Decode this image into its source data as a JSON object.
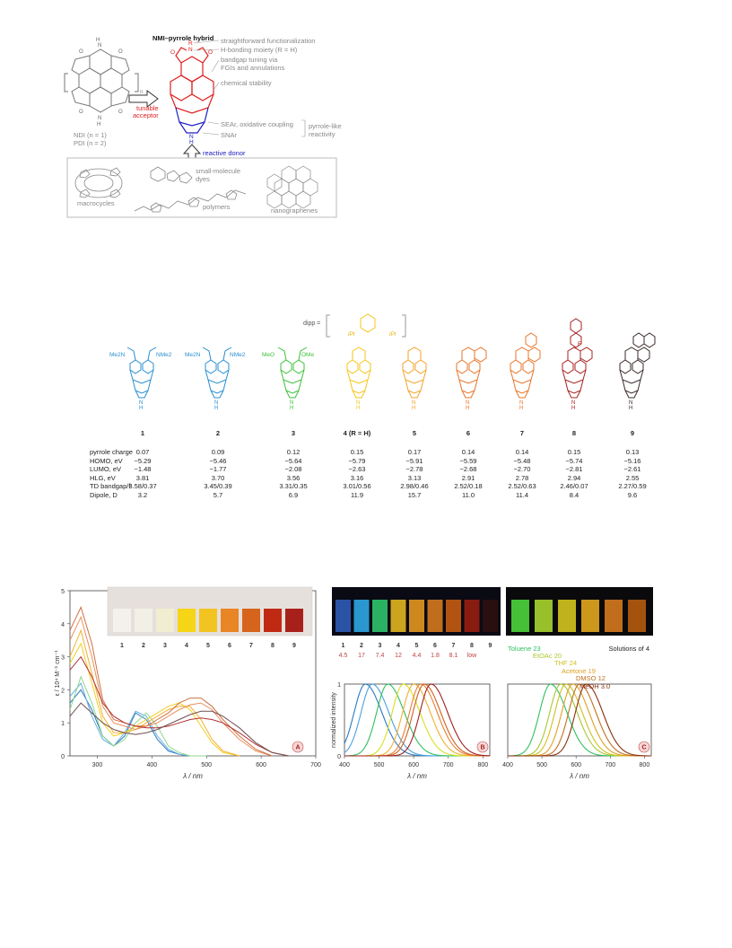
{
  "scheme": {
    "title": "NMI–pyrrole hybrid",
    "ndi_label": "NDI (n = 1)",
    "pdi_label": "PDI (n = 2)",
    "subscript_n": "n",
    "tunable_label_1": "tunable",
    "tunable_label_2": "acceptor",
    "reactive_donor": "reactive donor",
    "annotations": [
      "straightforward functionalization",
      "H-bonding moiety (R = H)",
      "bandgap tuning via",
      "FGIs and annulations",
      "chemical stability",
      "SEAr, oxidative coupling",
      "SNAr"
    ],
    "pyrrole_like_1": "pyrrole-like",
    "pyrrole_like_2": "reactivity",
    "box_labels": [
      "macrocycles",
      "small-molecule",
      "dyes",
      "polymers",
      "nanographenes"
    ]
  },
  "compounds": {
    "dipp_label": "dipp =",
    "ipr": "iPr",
    "labels": [
      "1",
      "2",
      "3",
      "4 (R = H)",
      "5",
      "6",
      "7",
      "8",
      "9"
    ],
    "colors": [
      "#2a8fd1",
      "#2a8fd1",
      "#3cc23c",
      "#f5c518",
      "#f3a22a",
      "#e8752a",
      "#e8752a",
      "#a82020",
      "#3a2a2a"
    ],
    "substituents": {
      "c1_left": "Me2N",
      "c1_right": "NMe2",
      "c2_left": "Me2N",
      "c2_right": "NMe2",
      "c3_left": "MeO",
      "c3_right": "OMe"
    },
    "bf2": "F"
  },
  "table": {
    "rows": [
      {
        "label": "pyrrole charge",
        "values": [
          "0.07",
          "0.09",
          "0.12",
          "0.15",
          "0.17",
          "0.14",
          "0.14",
          "0.15",
          "0.13"
        ]
      },
      {
        "label": "HOMO, eV",
        "values": [
          "−5.29",
          "−5.46",
          "−5.64",
          "−5.79",
          "−5.91",
          "−5.59",
          "−5.48",
          "−5.74",
          "−5.16"
        ]
      },
      {
        "label": "LUMO, eV",
        "values": [
          "−1.48",
          "−1.77",
          "−2.08",
          "−2.63",
          "−2.78",
          "−2.68",
          "−2.70",
          "−2.81",
          "−2.61"
        ]
      },
      {
        "label": "HLG, eV",
        "values": [
          "3.81",
          "3.70",
          "3.56",
          "3.16",
          "3.13",
          "2.91",
          "2.78",
          "2.94",
          "2.55"
        ]
      },
      {
        "label": "TD bandgap/f",
        "values": [
          "3.58/0.37",
          "3.45/0.39",
          "3.31/0.35",
          "3.01/0.56",
          "2.98/0.46",
          "2.52/0.18",
          "2.52/0.63",
          "2.46/0.07",
          "2.27/0.59"
        ]
      },
      {
        "label": "Dipole, D",
        "values": [
          "3.2",
          "5.7",
          "6.9",
          "11.9",
          "15.7",
          "11.0",
          "11.4",
          "8.4",
          "9.6"
        ]
      }
    ]
  },
  "chart_data": [
    {
      "type": "line",
      "panel": "A",
      "xlabel": "λ / nm",
      "ylabel": "ε / 10⁴ M⁻¹ cm⁻¹",
      "xlim": [
        250,
        700
      ],
      "ylim": [
        0,
        5
      ],
      "xticks": [
        "300",
        "400",
        "500",
        "600",
        "700"
      ],
      "yticks": [
        "0",
        "1",
        "2",
        "3",
        "4",
        "5"
      ],
      "vial_labels": [
        "1",
        "2",
        "3",
        "4",
        "5",
        "6",
        "7",
        "8",
        "9"
      ],
      "series": [
        {
          "name": "1",
          "color": "#2a7ac0",
          "x": [
            250,
            270,
            290,
            310,
            330,
            350,
            370,
            390,
            410,
            430,
            450,
            470,
            500
          ],
          "y": [
            1.6,
            2.0,
            1.4,
            0.6,
            0.3,
            0.6,
            1.3,
            1.1,
            0.5,
            0.15,
            0.05,
            0,
            0
          ]
        },
        {
          "name": "2",
          "color": "#6aaee0",
          "x": [
            250,
            270,
            290,
            310,
            330,
            350,
            370,
            390,
            410,
            430,
            450,
            470,
            500
          ],
          "y": [
            1.8,
            2.2,
            1.2,
            0.5,
            0.3,
            0.7,
            1.35,
            1.2,
            0.6,
            0.2,
            0.05,
            0,
            0
          ]
        },
        {
          "name": "3",
          "color": "#8fd88f",
          "x": [
            250,
            270,
            290,
            310,
            330,
            350,
            370,
            390,
            410,
            430,
            450,
            470,
            500
          ],
          "y": [
            1.4,
            2.4,
            1.6,
            0.6,
            0.3,
            0.5,
            1.0,
            1.3,
            0.9,
            0.3,
            0.1,
            0,
            0
          ]
        },
        {
          "name": "4",
          "color": "#f0d020",
          "x": [
            250,
            270,
            290,
            310,
            330,
            350,
            370,
            390,
            410,
            430,
            450,
            470,
            490,
            510,
            530,
            560
          ],
          "y": [
            2.8,
            3.4,
            2.2,
            1.0,
            0.6,
            0.7,
            0.9,
            1.1,
            1.3,
            1.5,
            1.6,
            1.4,
            0.9,
            0.4,
            0.1,
            0
          ]
        },
        {
          "name": "5",
          "color": "#f6b030",
          "x": [
            250,
            270,
            290,
            310,
            330,
            350,
            370,
            390,
            410,
            430,
            450,
            470,
            490,
            510,
            530,
            560
          ],
          "y": [
            3.0,
            3.8,
            2.5,
            1.2,
            0.7,
            0.7,
            0.8,
            1.0,
            1.2,
            1.4,
            1.5,
            1.5,
            1.1,
            0.5,
            0.15,
            0
          ]
        },
        {
          "name": "6",
          "color": "#e89060",
          "x": [
            250,
            270,
            290,
            310,
            330,
            350,
            370,
            390,
            410,
            430,
            450,
            470,
            490,
            510,
            530,
            560,
            590,
            620
          ],
          "y": [
            3.5,
            4.2,
            3.0,
            1.5,
            1.0,
            0.9,
            0.8,
            0.9,
            1.0,
            1.2,
            1.4,
            1.55,
            1.6,
            1.4,
            1.0,
            0.5,
            0.15,
            0
          ]
        },
        {
          "name": "7",
          "color": "#d07040",
          "x": [
            250,
            270,
            290,
            310,
            330,
            350,
            370,
            390,
            410,
            430,
            450,
            470,
            490,
            510,
            530,
            560,
            590,
            620
          ],
          "y": [
            3.8,
            4.5,
            3.4,
            1.7,
            1.1,
            1.0,
            0.9,
            0.9,
            1.1,
            1.3,
            1.6,
            1.75,
            1.75,
            1.5,
            1.1,
            0.6,
            0.2,
            0
          ]
        },
        {
          "name": "8",
          "color": "#b03030",
          "x": [
            250,
            270,
            290,
            310,
            330,
            350,
            370,
            390,
            410,
            430,
            450,
            470,
            490,
            510,
            530,
            560,
            590,
            620,
            650
          ],
          "y": [
            2.6,
            3.0,
            2.4,
            1.6,
            1.2,
            1.0,
            0.9,
            0.85,
            0.85,
            0.9,
            1.0,
            1.1,
            1.15,
            1.1,
            1.0,
            0.7,
            0.35,
            0.1,
            0
          ]
        },
        {
          "name": "9",
          "color": "#705050",
          "x": [
            250,
            270,
            290,
            310,
            330,
            350,
            370,
            390,
            410,
            430,
            450,
            470,
            490,
            510,
            530,
            560,
            590,
            620,
            650
          ],
          "y": [
            1.2,
            1.6,
            1.3,
            1.0,
            0.8,
            0.7,
            0.65,
            0.7,
            0.8,
            0.95,
            1.1,
            1.25,
            1.35,
            1.35,
            1.2,
            0.85,
            0.4,
            0.1,
            0
          ]
        }
      ]
    },
    {
      "type": "line",
      "panel": "B",
      "xlabel": "λ / nm",
      "ylabel": "normalized intensity",
      "xlim": [
        400,
        820
      ],
      "ylim": [
        0,
        1
      ],
      "xticks": [
        "400",
        "500",
        "600",
        "700",
        "800"
      ],
      "yticks": [
        "0",
        "1"
      ],
      "vial_labels": [
        "1",
        "2",
        "3",
        "4",
        "5",
        "6",
        "7",
        "8",
        "9"
      ],
      "quantum_yields": [
        "4.5",
        "17",
        "7.4",
        "12",
        "4.4",
        "1.8",
        "8.1",
        "low"
      ],
      "series": [
        {
          "name": "1",
          "color": "#2a7ac0",
          "peak": 460
        },
        {
          "name": "2",
          "color": "#4aa0e0",
          "peak": 480
        },
        {
          "name": "3",
          "color": "#30c060",
          "peak": 525
        },
        {
          "name": "4",
          "color": "#d8e020",
          "peak": 570
        },
        {
          "name": "5",
          "color": "#f0b030",
          "peak": 600
        },
        {
          "name": "6",
          "color": "#e88030",
          "peak": 620
        },
        {
          "name": "7",
          "color": "#d06020",
          "peak": 630
        },
        {
          "name": "9",
          "color": "#a02020",
          "peak": 650
        }
      ]
    },
    {
      "type": "line",
      "panel": "C",
      "xlabel": "λ / nm",
      "xlim": [
        400,
        820
      ],
      "ylim": [
        0,
        1
      ],
      "xticks": [
        "400",
        "500",
        "600",
        "700",
        "800"
      ],
      "title_right": "Solutions of 4",
      "series": [
        {
          "name": "Toluene 23",
          "color": "#30c060",
          "peak": 525
        },
        {
          "name": "EtOAc 20",
          "color": "#a8c830",
          "peak": 555
        },
        {
          "name": "THF 24",
          "color": "#d0c020",
          "peak": 570
        },
        {
          "name": "Acetone 19",
          "color": "#e0a020",
          "peak": 590
        },
        {
          "name": "DMSO 12",
          "color": "#c07020",
          "peak": 610
        },
        {
          "name": "MeOH 3.0",
          "color": "#8a3010",
          "peak": 630
        }
      ]
    }
  ]
}
